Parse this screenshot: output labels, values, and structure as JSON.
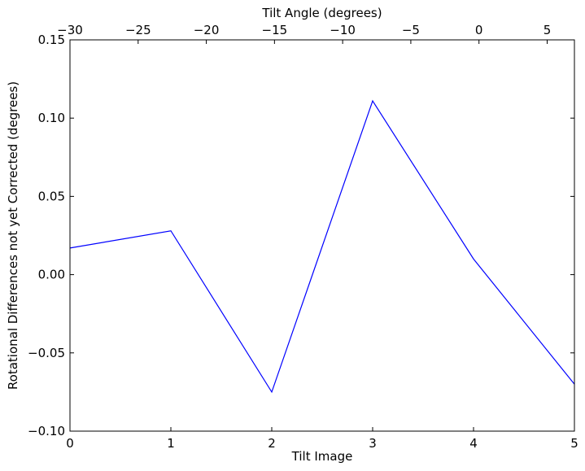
{
  "chart_data": {
    "type": "line",
    "title": "",
    "xlabel": "Tilt Image",
    "ylabel": "Rotational Differences not yet Corrected (degrees)",
    "x2label": "Tilt Angle (degrees)",
    "xlim": [
      0,
      5
    ],
    "ylim": [
      -0.1,
      0.15
    ],
    "x2lim": [
      -30,
      7
    ],
    "xticks": [
      0,
      1,
      2,
      3,
      4,
      5
    ],
    "xtick_labels": [
      "0",
      "1",
      "2",
      "3",
      "4",
      "5"
    ],
    "yticks": [
      -0.1,
      -0.05,
      0.0,
      0.05,
      0.1,
      0.15
    ],
    "ytick_labels": [
      "−0.10",
      "−0.05",
      "0.00",
      "0.05",
      "0.10",
      "0.15"
    ],
    "x2ticks": [
      -30,
      -25,
      -20,
      -15,
      -10,
      -5,
      0,
      5
    ],
    "x2tick_labels": [
      "−30",
      "−25",
      "−20",
      "−15",
      "−10",
      "−5",
      "0",
      "5"
    ],
    "grid": false,
    "series": [
      {
        "color": "#0000ff",
        "x": [
          0,
          1,
          2,
          3,
          4,
          5
        ],
        "y": [
          0.017,
          0.028,
          -0.075,
          0.111,
          0.01,
          -0.07
        ]
      }
    ]
  }
}
